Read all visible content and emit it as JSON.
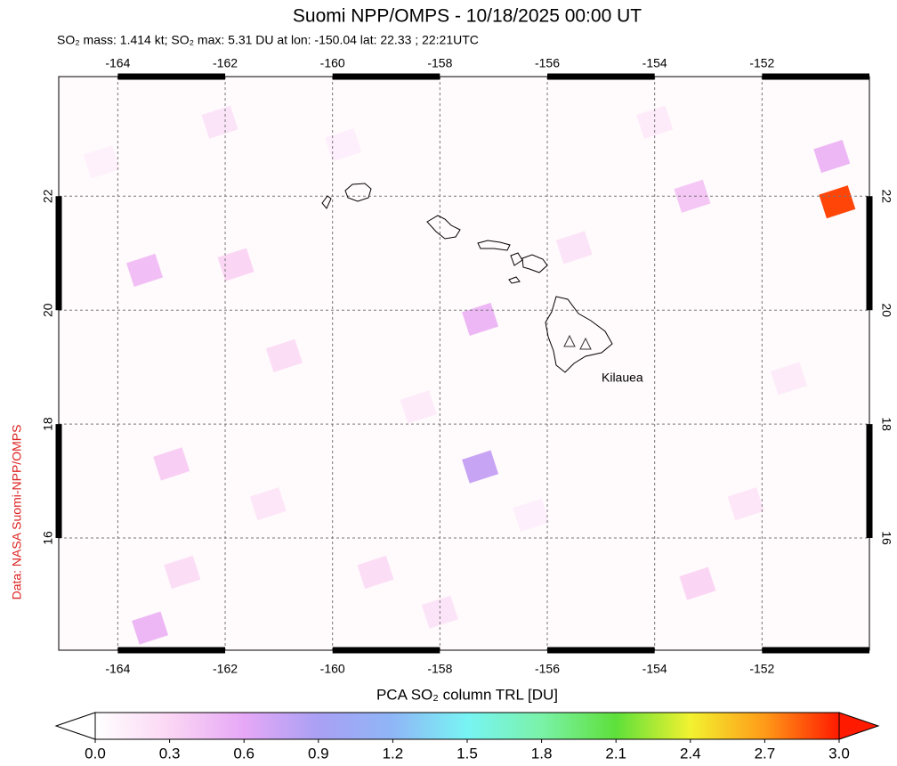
{
  "title": "Suomi NPP/OMPS - 10/18/2025 00:00 UT",
  "subtitle": "SO₂ mass: 1.414 kt; SO₂ max: 5.31 DU at lon: -150.04 lat: 22.33 ; 22:21UTC",
  "credit": "Data: NASA Suomi-NPP/OMPS",
  "map": {
    "lonlim": [
      -165.1,
      -150.0
    ],
    "latlim": [
      14.03,
      24.1
    ],
    "lonticks": [
      -164,
      -162,
      -160,
      -158,
      -156,
      -154,
      -152
    ],
    "latticks": [
      16,
      18,
      20,
      22
    ],
    "grid": true,
    "volcano_label": "Kilauea",
    "cells": [
      {
        "lon": -163.5,
        "lat": 20.7,
        "value": 0.45
      },
      {
        "lon": -162.1,
        "lat": 23.3,
        "value": 0.2
      },
      {
        "lon": -161.8,
        "lat": 20.8,
        "value": 0.3
      },
      {
        "lon": -157.25,
        "lat": 19.84,
        "value": 0.5
      },
      {
        "lon": -157.25,
        "lat": 17.25,
        "value": 0.75
      },
      {
        "lon": -163.0,
        "lat": 17.3,
        "value": 0.35
      },
      {
        "lon": -162.8,
        "lat": 15.4,
        "value": 0.25
      },
      {
        "lon": -163.4,
        "lat": 14.42,
        "value": 0.5
      },
      {
        "lon": -153.3,
        "lat": 22.0,
        "value": 0.4
      },
      {
        "lon": -150.7,
        "lat": 22.7,
        "value": 0.5
      },
      {
        "lon": -150.6,
        "lat": 21.9,
        "value": 2.9
      },
      {
        "lon": -155.5,
        "lat": 21.1,
        "value": 0.2
      },
      {
        "lon": -160.9,
        "lat": 19.2,
        "value": 0.25
      },
      {
        "lon": -153.2,
        "lat": 15.2,
        "value": 0.3
      },
      {
        "lon": -159.2,
        "lat": 15.4,
        "value": 0.25
      },
      {
        "lon": -164.3,
        "lat": 22.6,
        "value": 0.1
      },
      {
        "lon": -159.8,
        "lat": 22.9,
        "value": 0.12
      },
      {
        "lon": -154.0,
        "lat": 23.3,
        "value": 0.15
      },
      {
        "lon": -151.5,
        "lat": 18.8,
        "value": 0.15
      },
      {
        "lon": -156.3,
        "lat": 16.4,
        "value": 0.12
      },
      {
        "lon": -158.4,
        "lat": 18.3,
        "value": 0.15
      },
      {
        "lon": -161.2,
        "lat": 16.6,
        "value": 0.18
      },
      {
        "lon": -152.3,
        "lat": 16.6,
        "value": 0.18
      },
      {
        "lon": -158.0,
        "lat": 14.7,
        "value": 0.2
      }
    ]
  },
  "colorbar": {
    "label": "PCA SO₂ column TRL [DU]",
    "lim": [
      0,
      3
    ],
    "ticks": [
      {
        "value": 0,
        "label": "0.0"
      },
      {
        "value": 0.3,
        "label": "0.3"
      },
      {
        "value": 0.6,
        "label": "0.6"
      },
      {
        "value": 0.9,
        "label": "0.9"
      },
      {
        "value": 1.2,
        "label": "1.2"
      },
      {
        "value": 1.5,
        "label": "1.5"
      },
      {
        "value": 1.8,
        "label": "1.8"
      },
      {
        "value": 2.1,
        "label": "2.1"
      },
      {
        "value": 2.4,
        "label": "2.4"
      },
      {
        "value": 2.7,
        "label": "2.7"
      },
      {
        "value": 3.0,
        "label": "3.0"
      }
    ]
  }
}
